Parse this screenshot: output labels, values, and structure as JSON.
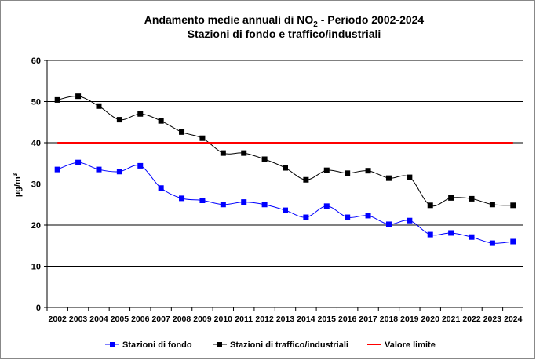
{
  "chart_data": {
    "type": "line",
    "title_line1_pre": "Andamento medie annuali di NO",
    "title_sub": "2",
    "title_line1_post": " - Periodo 2002-2024",
    "title_line2": "Stazioni di fondo e traffico/industriali",
    "ylabel_pre": "µg/m",
    "ylabel_sup": "3",
    "xlabel": "",
    "ylim": [
      0,
      60
    ],
    "yticks": [
      "0",
      "10",
      "20",
      "30",
      "40",
      "50",
      "60"
    ],
    "categories": [
      "2002",
      "2003",
      "2004",
      "2005",
      "2006",
      "2007",
      "2008",
      "2009",
      "2010",
      "2011",
      "2012",
      "2013",
      "2014",
      "2015",
      "2016",
      "2017",
      "2018",
      "2019",
      "2020",
      "2021",
      "2022",
      "2023",
      "2024"
    ],
    "grid": true,
    "legend_position": "bottom",
    "series": [
      {
        "name": "Stazioni di fondo",
        "color": "#0000ff",
        "marker": "square",
        "values": [
          33.5,
          35.2,
          33.5,
          33,
          34.4,
          29,
          26.5,
          26,
          25,
          25.6,
          25,
          23.6,
          21.9,
          24.6,
          21.9,
          22.3,
          20.2,
          21.1,
          17.7,
          18.1,
          17.1,
          15.6,
          16
        ]
      },
      {
        "name": "Stazioni di traffico/industriali",
        "color": "#000000",
        "marker": "square",
        "values": [
          50.4,
          51.3,
          48.9,
          45.6,
          47,
          45.3,
          42.6,
          41.1,
          37.5,
          37.5,
          36,
          33.9,
          31,
          33.3,
          32.6,
          33.2,
          31.4,
          31.6,
          24.8,
          26.6,
          26.4,
          25,
          24.8
        ]
      },
      {
        "name": "Valore limite",
        "color": "#ff0000",
        "marker": "none",
        "values": [
          40,
          40,
          40,
          40,
          40,
          40,
          40,
          40,
          40,
          40,
          40,
          40,
          40,
          40,
          40,
          40,
          40,
          40,
          40,
          40,
          40,
          40,
          40
        ]
      }
    ]
  }
}
